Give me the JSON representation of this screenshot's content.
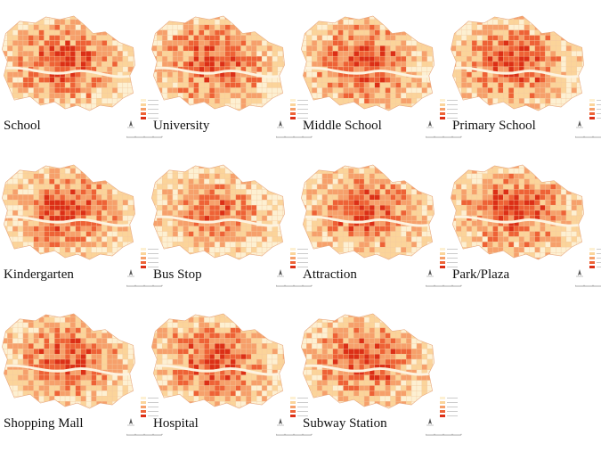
{
  "figure": {
    "colors": [
      "#fdf0d2",
      "#fbd49a",
      "#f6a06b",
      "#ee6236",
      "#dc2f16"
    ],
    "panels": [
      {
        "title": "School"
      },
      {
        "title": "University"
      },
      {
        "title": "Middle School"
      },
      {
        "title": "Primary School"
      },
      {
        "title": "Kindergarten"
      },
      {
        "title": "Bus Stop"
      },
      {
        "title": "Attraction"
      },
      {
        "title": "Park/Plaza"
      },
      {
        "title": "Shopping Mall"
      },
      {
        "title": "Hospital"
      },
      {
        "title": "Subway Station"
      }
    ]
  }
}
